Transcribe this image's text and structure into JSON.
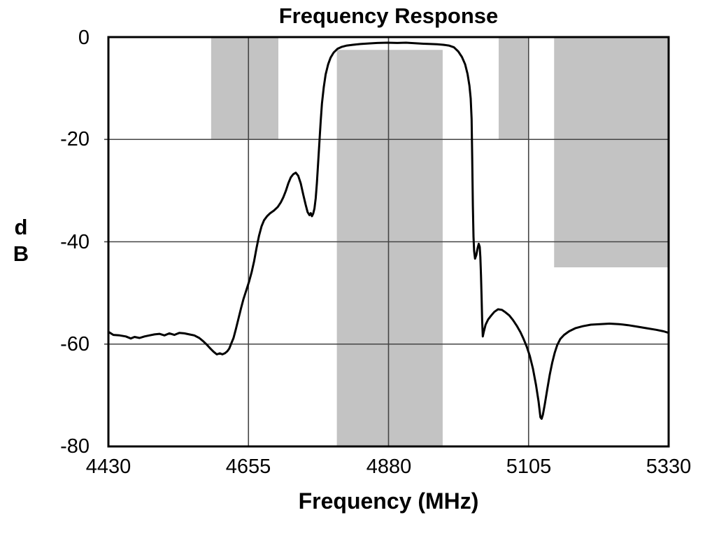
{
  "title": "Frequency Response",
  "xlabel": "Frequency (MHz)",
  "ylabel_lines": [
    "d",
    "B"
  ],
  "x_tick_labels": [
    "4430",
    "4655",
    "4880",
    "5105",
    "5330"
  ],
  "y_tick_labels": [
    "0",
    "-20",
    "-40",
    "-60",
    "-80"
  ],
  "chart_data": {
    "type": "line",
    "title": "Frequency Response",
    "xlabel": "Frequency (MHz)",
    "ylabel": "dB",
    "xlim": [
      4430,
      5330
    ],
    "ylim": [
      -80,
      0
    ],
    "x_ticks": [
      4430,
      4655,
      4880,
      5105,
      5330
    ],
    "y_ticks": [
      0,
      -20,
      -40,
      -60,
      -80
    ],
    "grid": true,
    "legend": "none",
    "colors": {
      "curve": "#000000",
      "mask": "#c3c3c3",
      "grid": "#444444",
      "frame": "#000000"
    },
    "mask_regions": [
      {
        "name": "lower-stopband-mask",
        "x1": 4595,
        "x2": 4703,
        "top_db": 0,
        "bottom_db": -20
      },
      {
        "name": "passband-mask",
        "x1": 4797,
        "x2": 4967,
        "top_db": -2.5,
        "bottom_db": -80
      },
      {
        "name": "upper-stopband-mask-1",
        "x1": 5057,
        "x2": 5104,
        "top_db": 0,
        "bottom_db": -20
      },
      {
        "name": "upper-stopband-mask-2",
        "x1": 5146,
        "x2": 5330,
        "top_db": 0,
        "bottom_db": -45
      }
    ],
    "series": [
      {
        "name": "measured-response",
        "points": [
          [
            4430,
            -57.6
          ],
          [
            4438,
            -58.2
          ],
          [
            4448,
            -58.3
          ],
          [
            4458,
            -58.5
          ],
          [
            4466,
            -58.9
          ],
          [
            4472,
            -58.6
          ],
          [
            4480,
            -58.8
          ],
          [
            4488,
            -58.5
          ],
          [
            4496,
            -58.3
          ],
          [
            4504,
            -58.1
          ],
          [
            4512,
            -58.0
          ],
          [
            4520,
            -58.3
          ],
          [
            4528,
            -57.9
          ],
          [
            4536,
            -58.2
          ],
          [
            4544,
            -57.8
          ],
          [
            4552,
            -57.9
          ],
          [
            4560,
            -58.1
          ],
          [
            4568,
            -58.3
          ],
          [
            4576,
            -58.8
          ],
          [
            4582,
            -59.4
          ],
          [
            4588,
            -60.1
          ],
          [
            4594,
            -60.9
          ],
          [
            4599,
            -61.5
          ],
          [
            4604,
            -62.0
          ],
          [
            4609,
            -61.8
          ],
          [
            4613,
            -62.0
          ],
          [
            4617,
            -61.8
          ],
          [
            4621,
            -61.4
          ],
          [
            4624,
            -60.9
          ],
          [
            4627,
            -60.0
          ],
          [
            4631,
            -58.8
          ],
          [
            4635,
            -57.0
          ],
          [
            4639,
            -55.0
          ],
          [
            4643,
            -53.0
          ],
          [
            4647,
            -51.2
          ],
          [
            4652,
            -49.3
          ],
          [
            4656,
            -47.8
          ],
          [
            4660,
            -46.0
          ],
          [
            4664,
            -43.8
          ],
          [
            4668,
            -41.2
          ],
          [
            4672,
            -38.8
          ],
          [
            4676,
            -37.0
          ],
          [
            4680,
            -35.8
          ],
          [
            4685,
            -35.0
          ],
          [
            4690,
            -34.4
          ],
          [
            4696,
            -33.9
          ],
          [
            4702,
            -33.2
          ],
          [
            4707,
            -32.3
          ],
          [
            4711,
            -31.3
          ],
          [
            4715,
            -30.1
          ],
          [
            4719,
            -28.6
          ],
          [
            4723,
            -27.4
          ],
          [
            4727,
            -26.8
          ],
          [
            4731,
            -26.5
          ],
          [
            4735,
            -27.1
          ],
          [
            4739,
            -28.6
          ],
          [
            4743,
            -30.8
          ],
          [
            4747,
            -32.8
          ],
          [
            4750,
            -34.2
          ],
          [
            4753,
            -34.8
          ],
          [
            4755,
            -34.4
          ],
          [
            4757,
            -35.0
          ],
          [
            4759,
            -34.5
          ],
          [
            4761,
            -33.5
          ],
          [
            4763,
            -31.5
          ],
          [
            4765,
            -28.5
          ],
          [
            4767,
            -24.5
          ],
          [
            4769,
            -20.5
          ],
          [
            4771,
            -16.5
          ],
          [
            4773,
            -13.0
          ],
          [
            4776,
            -9.8
          ],
          [
            4779,
            -7.3
          ],
          [
            4783,
            -5.3
          ],
          [
            4787,
            -4.0
          ],
          [
            4792,
            -3.0
          ],
          [
            4798,
            -2.3
          ],
          [
            4805,
            -1.9
          ],
          [
            4813,
            -1.65
          ],
          [
            4823,
            -1.5
          ],
          [
            4835,
            -1.35
          ],
          [
            4848,
            -1.25
          ],
          [
            4862,
            -1.15
          ],
          [
            4878,
            -1.1
          ],
          [
            4894,
            -1.15
          ],
          [
            4908,
            -1.1
          ],
          [
            4922,
            -1.2
          ],
          [
            4936,
            -1.3
          ],
          [
            4948,
            -1.35
          ],
          [
            4958,
            -1.4
          ],
          [
            4968,
            -1.5
          ],
          [
            4977,
            -1.65
          ],
          [
            4985,
            -2.0
          ],
          [
            4992,
            -2.8
          ],
          [
            4998,
            -3.9
          ],
          [
            5003,
            -5.3
          ],
          [
            5007,
            -7.2
          ],
          [
            5010,
            -9.5
          ],
          [
            5012,
            -12.0
          ],
          [
            5013.5,
            -16.0
          ],
          [
            5014.5,
            -24.0
          ],
          [
            5015.5,
            -33.0
          ],
          [
            5016.5,
            -39.0
          ],
          [
            5017.5,
            -41.8
          ],
          [
            5019,
            -43.3
          ],
          [
            5021,
            -42.6
          ],
          [
            5023,
            -41.3
          ],
          [
            5025,
            -40.4
          ],
          [
            5026.5,
            -41.0
          ],
          [
            5027.5,
            -43.0
          ],
          [
            5028.5,
            -46.5
          ],
          [
            5029.5,
            -51.0
          ],
          [
            5030.5,
            -55.5
          ],
          [
            5031.5,
            -58.5
          ],
          [
            5033,
            -57.6
          ],
          [
            5036,
            -56.2
          ],
          [
            5040,
            -55.2
          ],
          [
            5045,
            -54.4
          ],
          [
            5050,
            -53.7
          ],
          [
            5056,
            -53.2
          ],
          [
            5062,
            -53.3
          ],
          [
            5068,
            -53.8
          ],
          [
            5074,
            -54.4
          ],
          [
            5080,
            -55.3
          ],
          [
            5086,
            -56.4
          ],
          [
            5092,
            -57.7
          ],
          [
            5097,
            -59.0
          ],
          [
            5102,
            -60.5
          ],
          [
            5107,
            -62.3
          ],
          [
            5112,
            -64.8
          ],
          [
            5117,
            -68.0
          ],
          [
            5121,
            -71.2
          ],
          [
            5124,
            -74.3
          ],
          [
            5126,
            -74.6
          ],
          [
            5128,
            -73.8
          ],
          [
            5131,
            -71.8
          ],
          [
            5135,
            -68.8
          ],
          [
            5139,
            -66.0
          ],
          [
            5143,
            -63.6
          ],
          [
            5147,
            -61.7
          ],
          [
            5151,
            -60.2
          ],
          [
            5156,
            -59.0
          ],
          [
            5162,
            -58.2
          ],
          [
            5170,
            -57.5
          ],
          [
            5180,
            -56.9
          ],
          [
            5192,
            -56.5
          ],
          [
            5205,
            -56.2
          ],
          [
            5220,
            -56.1
          ],
          [
            5235,
            -56.0
          ],
          [
            5250,
            -56.1
          ],
          [
            5265,
            -56.3
          ],
          [
            5280,
            -56.6
          ],
          [
            5295,
            -56.9
          ],
          [
            5310,
            -57.2
          ],
          [
            5322,
            -57.5
          ],
          [
            5330,
            -57.8
          ]
        ]
      }
    ]
  }
}
